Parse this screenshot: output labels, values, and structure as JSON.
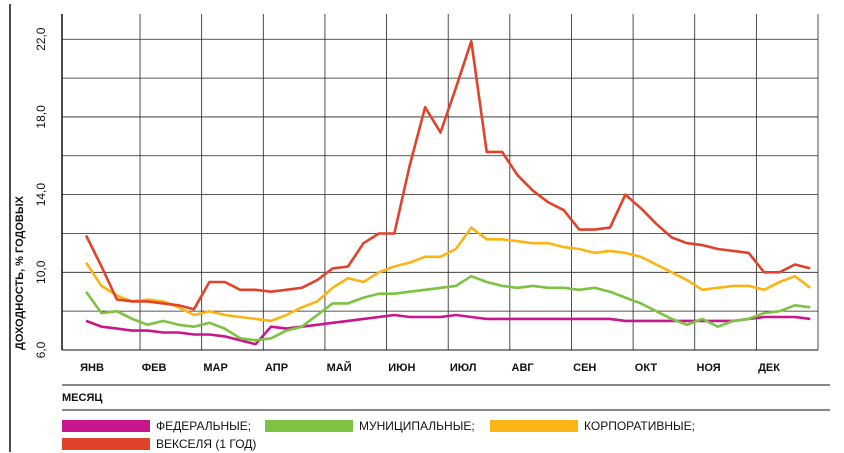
{
  "chart_data": {
    "type": "line",
    "y_label": "ДОХОДНОСТЬ, % ГОДОВЫХ",
    "x_label": "МЕСЯЦ",
    "categories": [
      "ЯНВ",
      null,
      null,
      null,
      "ФЕВ",
      null,
      null,
      null,
      "МАР",
      null,
      null,
      null,
      "АПР",
      null,
      null,
      null,
      "МАЙ",
      null,
      null,
      null,
      "ИЮН",
      null,
      null,
      null,
      "ИЮЛ",
      null,
      null,
      null,
      "АВГ",
      null,
      null,
      null,
      "СЕН",
      null,
      null,
      null,
      "ОКТ",
      null,
      null,
      null,
      "НОЯ",
      null,
      null,
      null,
      "ДЕК",
      null,
      null,
      null
    ],
    "series": [
      {
        "name": "ФЕДЕРАЛЬНЫЕ;",
        "color": "#c8168c",
        "values": [
          7.5,
          7.2,
          7.1,
          7.0,
          7.0,
          6.9,
          6.9,
          6.8,
          6.8,
          6.7,
          6.5,
          6.3,
          7.2,
          7.1,
          7.2,
          7.3,
          7.4,
          7.5,
          7.6,
          7.7,
          7.8,
          7.7,
          7.7,
          7.7,
          7.8,
          7.7,
          7.6,
          7.6,
          7.6,
          7.6,
          7.6,
          7.6,
          7.6,
          7.6,
          7.6,
          7.5,
          7.5,
          7.5,
          7.5,
          7.5,
          7.5,
          7.5,
          7.5,
          7.6,
          7.7,
          7.7,
          7.7,
          7.6
        ]
      },
      {
        "name": "МУНИЦИПАЛЬНЫЕ;",
        "color": "#7dc242",
        "values": [
          9.0,
          7.9,
          8.0,
          7.6,
          7.3,
          7.5,
          7.3,
          7.2,
          7.4,
          7.1,
          6.6,
          6.5,
          6.6,
          7.0,
          7.2,
          7.8,
          8.4,
          8.4,
          8.7,
          8.9,
          8.9,
          9.0,
          9.1,
          9.2,
          9.3,
          9.8,
          9.5,
          9.3,
          9.2,
          9.3,
          9.2,
          9.2,
          9.1,
          9.2,
          9.0,
          8.7,
          8.4,
          8.0,
          7.6,
          7.3,
          7.6,
          7.2,
          7.5,
          7.6,
          7.9,
          8.0,
          8.3,
          8.2
        ]
      },
      {
        "name": "КОРПОРАТИВНЫЕ;",
        "color": "#fbb416",
        "values": [
          10.5,
          9.3,
          8.8,
          8.5,
          8.6,
          8.5,
          8.2,
          7.8,
          8.0,
          7.8,
          7.7,
          7.6,
          7.5,
          7.8,
          8.2,
          8.5,
          9.2,
          9.7,
          9.5,
          10.0,
          10.3,
          10.5,
          10.8,
          10.8,
          11.2,
          12.3,
          11.7,
          11.7,
          11.6,
          11.5,
          11.5,
          11.3,
          11.2,
          11.0,
          11.1,
          11.0,
          10.8,
          10.4,
          10.0,
          9.6,
          9.1,
          9.2,
          9.3,
          9.3,
          9.1,
          9.5,
          9.8,
          9.2
        ]
      },
      {
        "name": "ВЕКСЕЛЯ (1 ГОД)",
        "color": "#e0432a",
        "values": [
          11.9,
          10.3,
          8.6,
          8.5,
          8.5,
          8.4,
          8.3,
          8.1,
          9.5,
          9.5,
          9.1,
          9.1,
          9.0,
          9.1,
          9.2,
          9.6,
          10.2,
          10.3,
          11.5,
          12.0,
          12.0,
          15.5,
          18.5,
          17.2,
          19.5,
          21.9,
          16.2,
          16.2,
          15.0,
          14.2,
          13.6,
          13.2,
          12.2,
          12.2,
          12.3,
          14.0,
          13.3,
          12.5,
          11.8,
          11.5,
          11.4,
          11.2,
          11.1,
          11.0,
          10.0,
          10.0,
          10.4,
          10.2
        ]
      }
    ],
    "ylim": [
      6,
      23.3
    ],
    "yticks": [
      {
        "value": 6,
        "label": "6,0"
      },
      {
        "value": 10,
        "label": "10,0"
      },
      {
        "value": 14,
        "label": "14,0"
      },
      {
        "value": 18,
        "label": "18,0"
      },
      {
        "value": 22,
        "label": "22,0"
      }
    ],
    "minor_yticks": [
      8,
      12,
      16,
      20
    ],
    "grid": true
  }
}
